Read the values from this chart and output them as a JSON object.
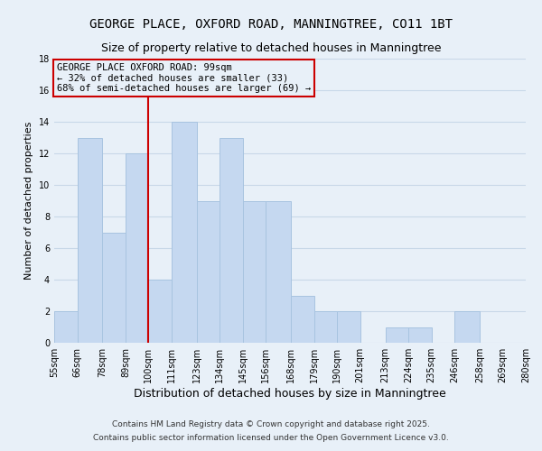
{
  "title": "GEORGE PLACE, OXFORD ROAD, MANNINGTREE, CO11 1BT",
  "subtitle": "Size of property relative to detached houses in Manningtree",
  "xlabel": "Distribution of detached houses by size in Manningtree",
  "ylabel": "Number of detached properties",
  "bin_edges": [
    55,
    66,
    78,
    89,
    100,
    111,
    123,
    134,
    145,
    156,
    168,
    179,
    190,
    201,
    213,
    224,
    235,
    246,
    258,
    269,
    280
  ],
  "bar_heights": [
    2,
    13,
    7,
    12,
    4,
    14,
    9,
    13,
    9,
    9,
    3,
    2,
    2,
    0,
    1,
    1,
    0,
    2,
    0,
    0
  ],
  "bar_color": "#c5d8f0",
  "bar_edgecolor": "#a8c4e0",
  "grid_color": "#c8d8e8",
  "background_color": "#e8f0f8",
  "vline_x": 100,
  "vline_color": "#cc0000",
  "ylim": [
    0,
    18
  ],
  "yticks": [
    0,
    2,
    4,
    6,
    8,
    10,
    12,
    14,
    16,
    18
  ],
  "annotation_title": "GEORGE PLACE OXFORD ROAD: 99sqm",
  "annotation_line2": "← 32% of detached houses are smaller (33)",
  "annotation_line3": "68% of semi-detached houses are larger (69) →",
  "annotation_box_edgecolor": "#cc0000",
  "footer_line1": "Contains HM Land Registry data © Crown copyright and database right 2025.",
  "footer_line2": "Contains public sector information licensed under the Open Government Licence v3.0.",
  "title_fontsize": 10,
  "subtitle_fontsize": 9,
  "xlabel_fontsize": 9,
  "ylabel_fontsize": 8,
  "tick_fontsize": 7,
  "annotation_fontsize": 7.5,
  "footer_fontsize": 6.5
}
